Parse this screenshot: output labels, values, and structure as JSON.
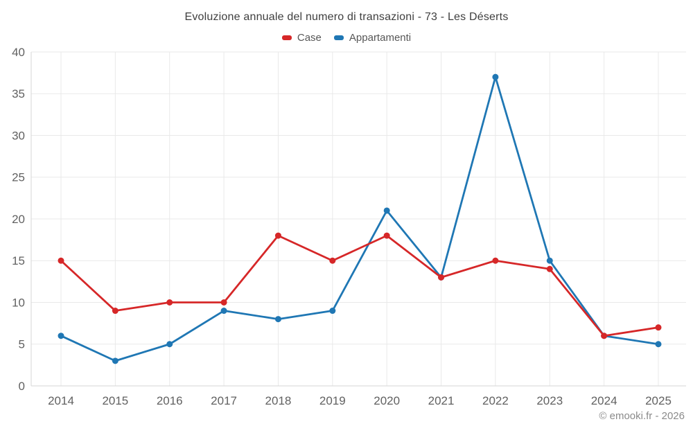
{
  "title": "Evoluzione annuale del numero di transazioni - 73 - Les Déserts",
  "footer": "© emooki.fr - 2026",
  "chart_data": {
    "type": "line",
    "title": "Evoluzione annuale del numero di transazioni - 73 - Les Déserts",
    "categories": [
      "2014",
      "2015",
      "2016",
      "2017",
      "2018",
      "2019",
      "2020",
      "2021",
      "2022",
      "2023",
      "2024",
      "2025"
    ],
    "series": [
      {
        "name": "Case",
        "color": "#d62728",
        "values": [
          15,
          9,
          10,
          10,
          18,
          15,
          18,
          13,
          15,
          14,
          6,
          7
        ]
      },
      {
        "name": "Appartamenti",
        "color": "#1f77b4",
        "values": [
          6,
          3,
          5,
          9,
          8,
          9,
          21,
          13,
          37,
          15,
          6,
          5
        ]
      }
    ],
    "xlabel": "",
    "ylabel": "",
    "ylim": [
      0,
      40
    ],
    "y_ticks": [
      0,
      5,
      10,
      15,
      20,
      25,
      30,
      35,
      40
    ],
    "grid": true,
    "legend_position": "top",
    "axis_color": "#d6d6d6",
    "grid_color": "#e9e9e9",
    "tick_label_color": "#616161"
  }
}
